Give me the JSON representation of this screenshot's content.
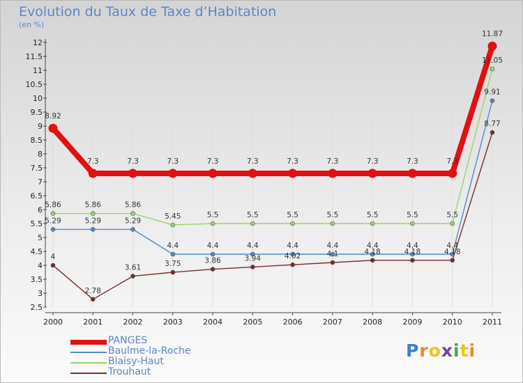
{
  "title": "Evolution du Taux de Taxe d’Habitation",
  "subtitle": "(en %)",
  "chart_data": {
    "type": "line",
    "x": [
      "2000",
      "2001",
      "2002",
      "2003",
      "2004",
      "2005",
      "2006",
      "2007",
      "2008",
      "2009",
      "2010",
      "2011"
    ],
    "ylim": [
      2.5,
      12
    ],
    "yticks": [
      2.5,
      3,
      3.5,
      4,
      4.5,
      5,
      5.5,
      6,
      6.5,
      7,
      7.5,
      8,
      8.5,
      9,
      9.5,
      10,
      10.5,
      11,
      11.5,
      12
    ],
    "series": [
      {
        "name": "PANGES",
        "color": "#e31010",
        "values": [
          8.92,
          7.3,
          7.3,
          7.3,
          7.3,
          7.3,
          7.3,
          7.3,
          7.3,
          7.3,
          7.3,
          11.87
        ]
      },
      {
        "name": "Baulme-la-Roche",
        "color": "#4f8cc4",
        "values": [
          5.29,
          5.29,
          5.29,
          4.4,
          4.4,
          4.4,
          4.4,
          4.4,
          4.4,
          4.4,
          4.4,
          9.91
        ]
      },
      {
        "name": "Blaisy-Haut",
        "color": "#94d66a",
        "values": [
          5.86,
          5.86,
          5.86,
          5.45,
          5.5,
          5.5,
          5.5,
          5.5,
          5.5,
          5.5,
          5.5,
          11.05
        ]
      },
      {
        "name": "Trouhaut",
        "color": "#7b2a2a",
        "values": [
          4,
          2.78,
          3.61,
          3.75,
          3.86,
          3.94,
          4.02,
          4.1,
          4.18,
          4.18,
          4.18,
          8.77
        ]
      }
    ]
  },
  "logo": {
    "letters": [
      "P",
      "r",
      "o",
      "x",
      "i",
      "t",
      "i"
    ],
    "colors": [
      "#3b7fd0",
      "#f08a1c",
      "#e8c51a",
      "#7a3d9a",
      "#3ab03a",
      "#e8c51a",
      "#f08a1c"
    ]
  }
}
